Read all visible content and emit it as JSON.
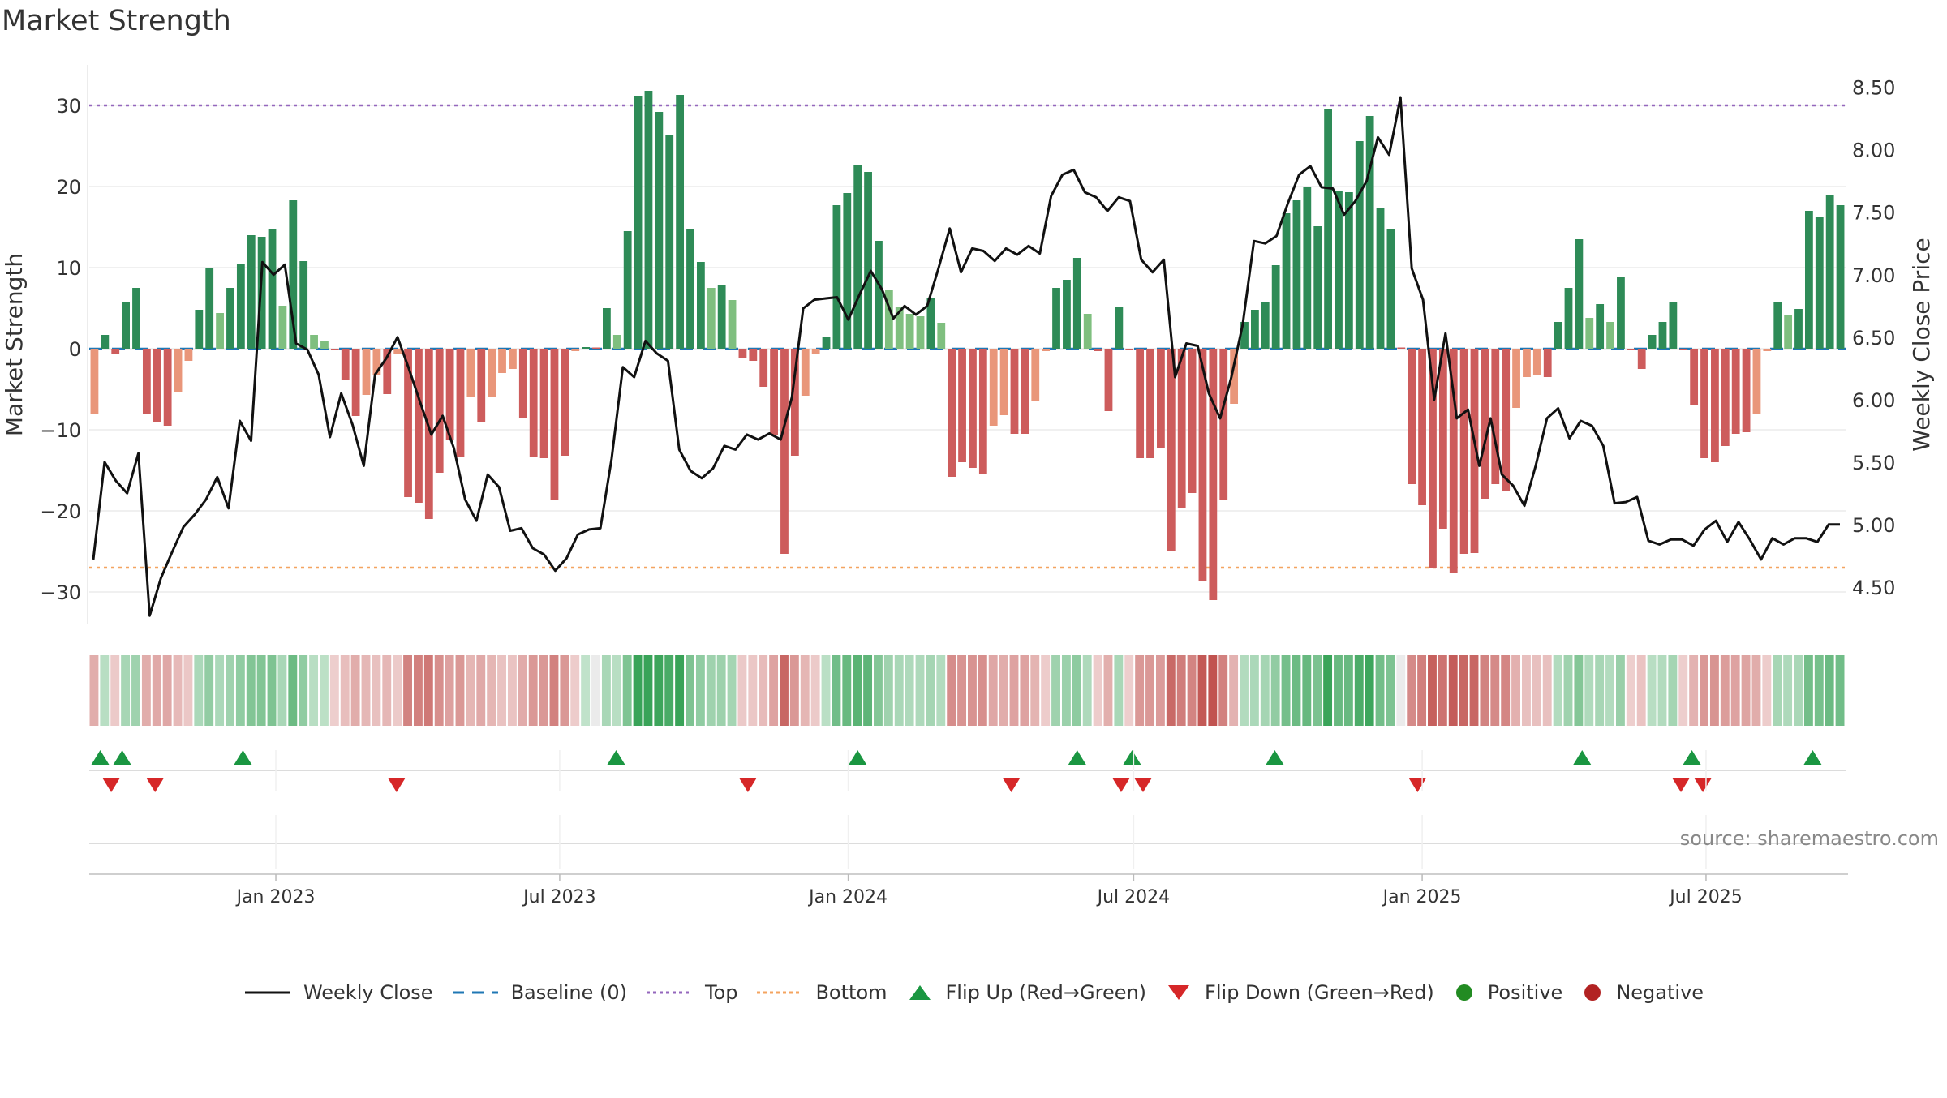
{
  "title": "Market Strength",
  "source": "source: sharemaestro.com",
  "colors": {
    "pos_dark": "#2e8b57",
    "pos_light": "#7fbf7f",
    "neg_dark": "#cd5c5c",
    "neg_light": "#e9967a",
    "close": "#111111",
    "baseline": "#1f77b4",
    "top": "#9467bd",
    "bottom": "#f4a460",
    "flip_up": "#1a9641",
    "flip_down": "#d62728",
    "positive": "#228b22",
    "negative": "#b22222"
  },
  "legend": [
    {
      "key": "close",
      "label": "Weekly Close",
      "icon": "line-solid-icon"
    },
    {
      "key": "baseline",
      "label": "Baseline (0)",
      "icon": "line-dashed-icon"
    },
    {
      "key": "top",
      "label": "Top",
      "icon": "line-dotted-icon"
    },
    {
      "key": "bottom",
      "label": "Bottom",
      "icon": "line-dotted-icon"
    },
    {
      "key": "flip_up",
      "label": "Flip Up (Red→Green)",
      "icon": "triangle-up-icon"
    },
    {
      "key": "flip_down",
      "label": "Flip Down (Green→Red)",
      "icon": "triangle-down-icon"
    },
    {
      "key": "positive",
      "label": "Positive",
      "icon": "circle-icon"
    },
    {
      "key": "negative",
      "label": "Negative",
      "icon": "circle-icon"
    }
  ],
  "chart_data": {
    "type": "bar",
    "title": "Market Strength",
    "ylabel": "Market Strength",
    "y2label": "Weekly Close Price",
    "ylim": [
      -34,
      35
    ],
    "y2lim": [
      4.2,
      8.68
    ],
    "yticks": [
      30,
      20,
      10,
      0,
      -10,
      -20,
      -30
    ],
    "y2ticks": [
      "8.50",
      "8.00",
      "7.50",
      "7.00",
      "6.50",
      "6.00",
      "5.50",
      "5.00",
      "4.50"
    ],
    "top_level": 30,
    "bottom_level": -27,
    "baseline": 0,
    "x_start": "2022-09-04",
    "x_end": "2025-09-28",
    "xticks": [
      {
        "date": "2023-01-01",
        "label": "Jan 2023"
      },
      {
        "date": "2023-07-01",
        "label": "Jul 2023"
      },
      {
        "date": "2024-01-01",
        "label": "Jan 2024"
      },
      {
        "date": "2024-07-01",
        "label": "Jul 2024"
      },
      {
        "date": "2025-01-01",
        "label": "Jan 2025"
      },
      {
        "date": "2025-07-01",
        "label": "Jul 2025"
      }
    ],
    "strength": [
      -8,
      1.7,
      -0.7,
      5.7,
      7.5,
      -8,
      -9,
      -9.5,
      -5.3,
      -1.5,
      4.8,
      10,
      4.4,
      7.5,
      10.5,
      14,
      13.8,
      14.8,
      5.3,
      18.3,
      10.8,
      1.7,
      1,
      -0.2,
      -3.8,
      -8.3,
      -5.7,
      -3.3,
      -5.6,
      -0.7,
      -18.3,
      -19,
      -21,
      -15.3,
      -11.3,
      -13.3,
      -6,
      -9,
      -6,
      -3,
      -2.5,
      -8.5,
      -13.3,
      -13.5,
      -18.7,
      -13.2,
      -0.3,
      0.2,
      0,
      5,
      1.7,
      14.5,
      31.2,
      31.8,
      29.2,
      26.3,
      31.3,
      14.7,
      10.7,
      7.5,
      7.8,
      6,
      -1.1,
      -1.5,
      -4.7,
      -10.7,
      -25.3,
      -13.2,
      -5.8,
      -0.7,
      1.5,
      17.7,
      19.2,
      22.7,
      21.8,
      13.3,
      7.3,
      5.1,
      4.3,
      4,
      6.2,
      3.2,
      -15.8,
      -14,
      -14.7,
      -15.5,
      -9.5,
      -8.2,
      -10.5,
      -10.5,
      -6.5,
      -0.3,
      7.5,
      8.5,
      11.2,
      4.3,
      -0.3,
      -7.7,
      5.2,
      -0.2,
      -13.5,
      -13.5,
      -12.3,
      -25,
      -19.7,
      -17.8,
      -28.7,
      -31,
      -18.7,
      -6.8,
      3.3,
      4.8,
      5.8,
      10.3,
      16.7,
      18.3,
      20,
      15.1,
      29.5,
      19.5,
      19.3,
      25.6,
      28.7,
      17.3,
      14.7,
      0,
      -16.7,
      -19.3,
      -27,
      -22.2,
      -27.7,
      -25.3,
      -25.2,
      -18.5,
      -16.7,
      -17.5,
      -7.3,
      -3.5,
      -3.3,
      -3.5,
      3.3,
      7.5,
      13.5,
      3.8,
      5.5,
      3.3,
      8.8,
      -0.2,
      -2.5,
      1.7,
      3.3,
      5.8,
      -0.2,
      -7,
      -13.5,
      -14,
      -12,
      -10.5,
      -10.3,
      -8,
      -0.3,
      5.7,
      4.1,
      4.9,
      17,
      16.3,
      18.9,
      17.7
    ],
    "weekly_close": [
      4.72,
      5.5,
      5.35,
      5.25,
      5.57,
      4.27,
      4.57,
      4.78,
      4.98,
      5.08,
      5.2,
      5.38,
      5.13,
      5.83,
      5.67,
      7.1,
      7,
      7.08,
      6.45,
      6.4,
      6.2,
      5.7,
      6.05,
      5.8,
      5.47,
      6.2,
      6.33,
      6.5,
      6.25,
      5.98,
      5.72,
      5.87,
      5.61,
      5.2,
      5.03,
      5.4,
      5.3,
      4.95,
      4.97,
      4.81,
      4.76,
      4.63,
      4.73,
      4.92,
      4.96,
      4.97,
      5.53,
      6.26,
      6.18,
      6.47,
      6.37,
      6.31,
      5.6,
      5.43,
      5.37,
      5.45,
      5.63,
      5.6,
      5.72,
      5.68,
      5.73,
      5.68,
      6.02,
      6.73,
      6.8,
      6.81,
      6.82,
      6.64,
      6.84,
      7.03,
      6.88,
      6.65,
      6.75,
      6.68,
      6.75,
      7.05,
      7.37,
      7.02,
      7.21,
      7.19,
      7.11,
      7.21,
      7.16,
      7.23,
      7.17,
      7.63,
      7.8,
      7.84,
      7.66,
      7.62,
      7.51,
      7.62,
      7.59,
      7.12,
      7.02,
      7.12,
      6.18,
      6.45,
      6.43,
      6.05,
      5.85,
      6.18,
      6.6,
      7.27,
      7.25,
      7.31,
      7.57,
      7.8,
      7.87,
      7.7,
      7.69,
      7.48,
      7.59,
      7.75,
      8.1,
      7.96,
      8.42,
      7.05,
      6.8,
      6.0,
      6.53,
      5.85,
      5.92,
      5.47,
      5.85,
      5.4,
      5.31,
      5.15,
      5.47,
      5.85,
      5.93,
      5.69,
      5.83,
      5.79,
      5.63,
      5.17,
      5.18,
      5.22,
      4.87,
      4.84,
      4.88,
      4.88,
      4.83,
      4.96,
      5.03,
      4.86,
      5.02,
      4.88,
      4.72,
      4.89,
      4.84,
      4.89,
      4.89,
      4.86,
      5.0,
      5.0
    ],
    "flip_up_dates": [
      "2022-09-11",
      "2022-09-25",
      "2022-12-11",
      "2023-08-06",
      "2024-01-07",
      "2024-05-26",
      "2024-06-30",
      "2024-09-29",
      "2025-04-13",
      "2025-06-22",
      "2025-09-07"
    ],
    "flip_down_dates": [
      "2022-09-18",
      "2022-10-16",
      "2023-03-19",
      "2023-10-29",
      "2024-04-14",
      "2024-06-23",
      "2024-07-07",
      "2024-12-29",
      "2025-06-15",
      "2025-06-29"
    ]
  }
}
